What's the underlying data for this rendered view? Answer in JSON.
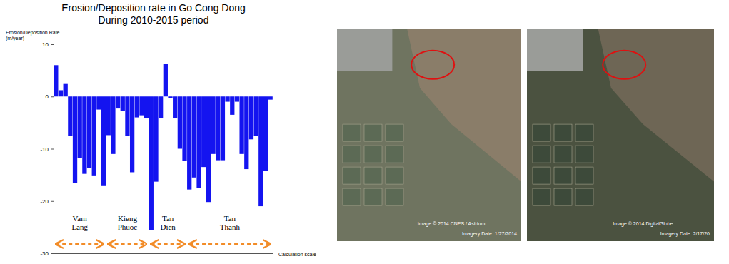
{
  "chart_data": {
    "type": "bar",
    "title": "Erosion/Deposition rate in Go Cong Dong",
    "subtitle": "During 2010-2015 period",
    "y_label": "Erosion/Deposition Rate (m/year)",
    "x_label": "Calculation scale",
    "annotations": [
      "Vam Lang",
      "Kieng Phuoc",
      "Tan Dien",
      "Tan Thanh"
    ],
    "categories": [
      null,
      null,
      null,
      null,
      null,
      null,
      null,
      null,
      null,
      null,
      null,
      null,
      null,
      null,
      null,
      null,
      null,
      null,
      null,
      null,
      null,
      null,
      null,
      null,
      null,
      null,
      null,
      null,
      null,
      null,
      null,
      null,
      null,
      null,
      null,
      null,
      null,
      null,
      null,
      null,
      null,
      null,
      null,
      null,
      null,
      null
    ],
    "values": [
      6.0,
      1.2,
      2.4,
      -7.6,
      -16.5,
      -11.8,
      -14.8,
      -13.7,
      -15.1,
      -2.5,
      -17.0,
      -7.4,
      -11.0,
      -2.3,
      -2.8,
      -7.5,
      -14.5,
      -4.0,
      -3.6,
      -4.2,
      -25.5,
      -16.3,
      -4.2,
      6.3,
      -0.3,
      -4.2,
      -10.0,
      -12.3,
      -17.8,
      -15.5,
      -17.5,
      -13.5,
      -20.2,
      -11.0,
      -12.2,
      -12.2,
      -1.0,
      -3.5,
      -1.0,
      -11.0,
      -13.9,
      -8.2,
      -7.5,
      -21.0,
      -14.2,
      -0.6
    ],
    "color": "#1414f0",
    "ylim": [
      -30,
      10
    ],
    "yticks": [
      10,
      0,
      -10,
      -20,
      -30
    ],
    "grid": false
  },
  "images": [
    {
      "copyright": "Image © 2014 CNES / Astrium",
      "date": "Imagery Date: 1/27/2014"
    },
    {
      "copyright": "Image © 2014 DigitalGlobe",
      "date": "Imagery Date: 2/17/20"
    }
  ]
}
